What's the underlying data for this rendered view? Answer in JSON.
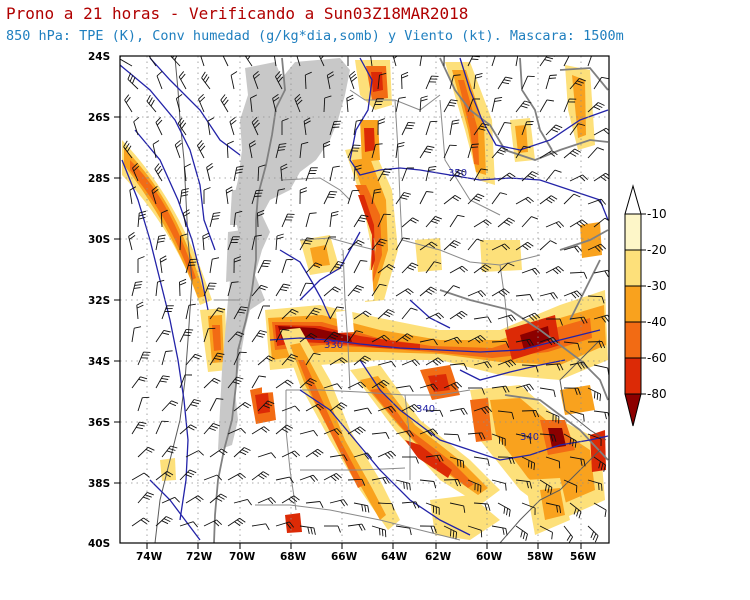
{
  "header": {
    "title": "Prono a 21 horas - Verificando a Sun03Z18MAR2018",
    "subtitle": "850 hPa: TPE (K), Conv humedad (g/kg*dia,somb) y Viento (kt). Mascara: 1500m"
  },
  "map": {
    "lon_range": [
      -75,
      -55
    ],
    "lat_range": [
      -40,
      -24
    ],
    "lat_labels": [
      "24S",
      "26S",
      "28S",
      "30S",
      "32S",
      "34S",
      "36S",
      "38S",
      "40S"
    ],
    "lon_labels": [
      "74W",
      "72W",
      "70W",
      "68W",
      "66W",
      "64W",
      "62W",
      "60W",
      "58W",
      "56W"
    ],
    "contour_labels": [
      "350",
      "330",
      "340",
      "340"
    ]
  },
  "colorbar": {
    "labels": [
      "-10",
      "-20",
      "-30",
      "-40",
      "-60",
      "-80"
    ],
    "colors": [
      "#fdf6c8",
      "#fde07a",
      "#f9a21e",
      "#f26b14",
      "#dc2a06",
      "#8c0000"
    ]
  },
  "colors": {
    "title": "#b00000",
    "subtitle": "#1f7fbf",
    "mask": "#c8c8c8",
    "contour": "#2323a8",
    "boundary": "#808080"
  }
}
